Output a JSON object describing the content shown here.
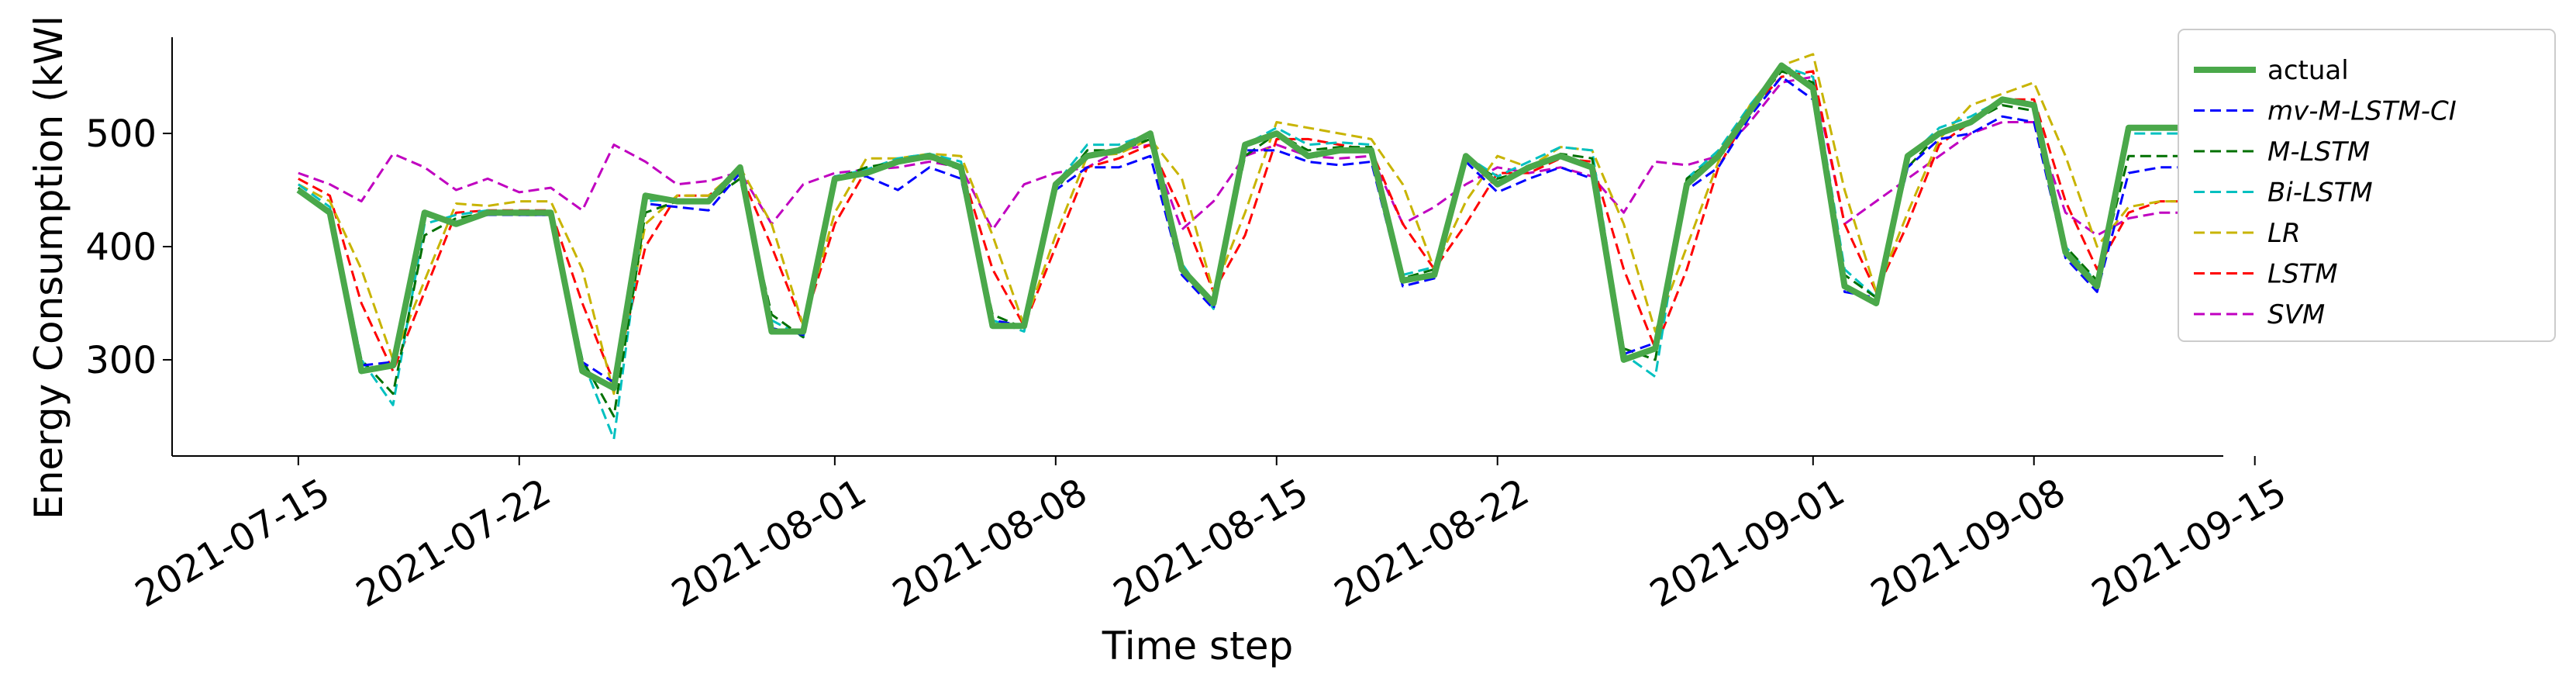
{
  "chart_data": {
    "type": "line",
    "title": "",
    "xlabel": "Time step",
    "ylabel": "Energy Consumption (kWl",
    "x_ticks": [
      "2021-07-15",
      "2021-07-22",
      "2021-08-01",
      "2021-08-08",
      "2021-08-15",
      "2021-08-22",
      "2021-09-01",
      "2021-09-08",
      "2021-09-15"
    ],
    "y_ticks": [
      300,
      400,
      500
    ],
    "xlim": [
      "2021-07-11",
      "2021-09-14"
    ],
    "ylim": [
      215,
      585
    ],
    "grid": false,
    "legend_position": "top-right",
    "x": [
      "2021-07-15",
      "2021-07-16",
      "2021-07-17",
      "2021-07-18",
      "2021-07-19",
      "2021-07-20",
      "2021-07-21",
      "2021-07-22",
      "2021-07-23",
      "2021-07-24",
      "2021-07-25",
      "2021-07-26",
      "2021-07-27",
      "2021-07-28",
      "2021-07-29",
      "2021-07-30",
      "2021-07-31",
      "2021-08-01",
      "2021-08-02",
      "2021-08-03",
      "2021-08-04",
      "2021-08-05",
      "2021-08-06",
      "2021-08-07",
      "2021-08-08",
      "2021-08-09",
      "2021-08-10",
      "2021-08-11",
      "2021-08-12",
      "2021-08-13",
      "2021-08-14",
      "2021-08-15",
      "2021-08-16",
      "2021-08-17",
      "2021-08-18",
      "2021-08-19",
      "2021-08-20",
      "2021-08-21",
      "2021-08-22",
      "2021-08-23",
      "2021-08-24",
      "2021-08-25",
      "2021-08-26",
      "2021-08-27",
      "2021-08-28",
      "2021-08-29",
      "2021-08-30",
      "2021-08-31",
      "2021-09-01",
      "2021-09-02",
      "2021-09-03",
      "2021-09-04",
      "2021-09-05",
      "2021-09-06",
      "2021-09-07",
      "2021-09-08",
      "2021-09-09",
      "2021-09-10",
      "2021-09-11",
      "2021-09-12",
      "2021-09-13"
    ],
    "series": [
      {
        "name": "actual",
        "color": "#4aa84a",
        "dashed": false,
        "values": [
          450,
          430,
          290,
          295,
          430,
          420,
          430,
          430,
          430,
          290,
          275,
          445,
          440,
          440,
          470,
          325,
          325,
          460,
          465,
          475,
          480,
          470,
          330,
          330,
          455,
          480,
          485,
          500,
          380,
          350,
          490,
          500,
          480,
          485,
          485,
          370,
          375,
          480,
          455,
          470,
          480,
          470,
          300,
          310,
          455,
          480,
          520,
          560,
          540,
          365,
          350,
          480,
          500,
          510,
          530,
          525,
          395,
          365,
          505,
          505,
          505
        ]
      },
      {
        "name": "mv-M-LSTM-CI",
        "color": "#0000ff",
        "dashed": true,
        "values": [
          448,
          432,
          295,
          298,
          428,
          422,
          428,
          428,
          428,
          298,
          280,
          438,
          435,
          432,
          465,
          328,
          322,
          462,
          462,
          450,
          470,
          460,
          335,
          330,
          450,
          470,
          470,
          480,
          375,
          345,
          485,
          485,
          475,
          472,
          475,
          365,
          372,
          475,
          448,
          460,
          470,
          460,
          305,
          315,
          450,
          470,
          515,
          550,
          530,
          360,
          355,
          470,
          495,
          500,
          515,
          510,
          390,
          360,
          465,
          470,
          470
        ]
      },
      {
        "name": "M-LSTM",
        "color": "#007000",
        "dashed": true,
        "values": [
          452,
          430,
          300,
          270,
          410,
          425,
          430,
          428,
          428,
          300,
          250,
          430,
          440,
          440,
          460,
          340,
          320,
          460,
          470,
          475,
          478,
          468,
          340,
          328,
          450,
          485,
          485,
          495,
          380,
          350,
          480,
          500,
          485,
          488,
          488,
          372,
          380,
          478,
          460,
          468,
          482,
          478,
          310,
          300,
          460,
          480,
          520,
          555,
          545,
          375,
          355,
          470,
          500,
          510,
          525,
          520,
          400,
          370,
          480,
          480,
          480
        ]
      },
      {
        "name": "Bi-LSTM",
        "color": "#00c0c0",
        "dashed": true,
        "values": [
          455,
          435,
          300,
          260,
          420,
          428,
          432,
          428,
          430,
          300,
          230,
          440,
          442,
          440,
          470,
          335,
          320,
          462,
          468,
          478,
          482,
          475,
          335,
          325,
          455,
          490,
          490,
          500,
          385,
          345,
          490,
          505,
          490,
          492,
          490,
          375,
          382,
          480,
          462,
          475,
          488,
          485,
          305,
          285,
          460,
          485,
          525,
          560,
          550,
          380,
          355,
          478,
          505,
          515,
          530,
          525,
          400,
          368,
          500,
          500,
          500
        ]
      },
      {
        "name": "LR",
        "color": "#c8b400",
        "dashed": true,
        "values": [
          455,
          440,
          380,
          300,
          370,
          438,
          436,
          440,
          440,
          380,
          270,
          420,
          445,
          445,
          470,
          420,
          330,
          430,
          478,
          478,
          482,
          480,
          410,
          330,
          410,
          480,
          482,
          495,
          460,
          360,
          430,
          510,
          505,
          500,
          495,
          455,
          380,
          440,
          480,
          470,
          488,
          485,
          420,
          325,
          400,
          475,
          525,
          560,
          570,
          450,
          360,
          430,
          495,
          525,
          535,
          545,
          480,
          400,
          435,
          440,
          440
        ]
      },
      {
        "name": "LSTM",
        "color": "#ff0000",
        "dashed": true,
        "values": [
          460,
          445,
          350,
          290,
          360,
          430,
          432,
          432,
          432,
          350,
          280,
          400,
          445,
          445,
          465,
          400,
          330,
          420,
          468,
          475,
          478,
          470,
          380,
          330,
          400,
          470,
          478,
          490,
          430,
          360,
          410,
          495,
          495,
          490,
          485,
          420,
          380,
          420,
          465,
          465,
          478,
          475,
          380,
          310,
          380,
          470,
          520,
          550,
          555,
          420,
          360,
          420,
          490,
          510,
          530,
          530,
          440,
          380,
          430,
          440,
          440
        ]
      },
      {
        "name": "SVM",
        "color": "#c000c0",
        "dashed": true,
        "values": [
          465,
          455,
          440,
          482,
          470,
          450,
          460,
          448,
          452,
          432,
          490,
          475,
          455,
          458,
          466,
          420,
          455,
          465,
          468,
          470,
          475,
          470,
          415,
          455,
          465,
          470,
          485,
          490,
          415,
          440,
          480,
          490,
          480,
          478,
          480,
          420,
          435,
          455,
          470,
          465,
          470,
          462,
          430,
          475,
          472,
          480,
          510,
          545,
          550,
          420,
          440,
          460,
          480,
          500,
          510,
          510,
          430,
          410,
          425,
          430,
          430
        ]
      }
    ]
  }
}
